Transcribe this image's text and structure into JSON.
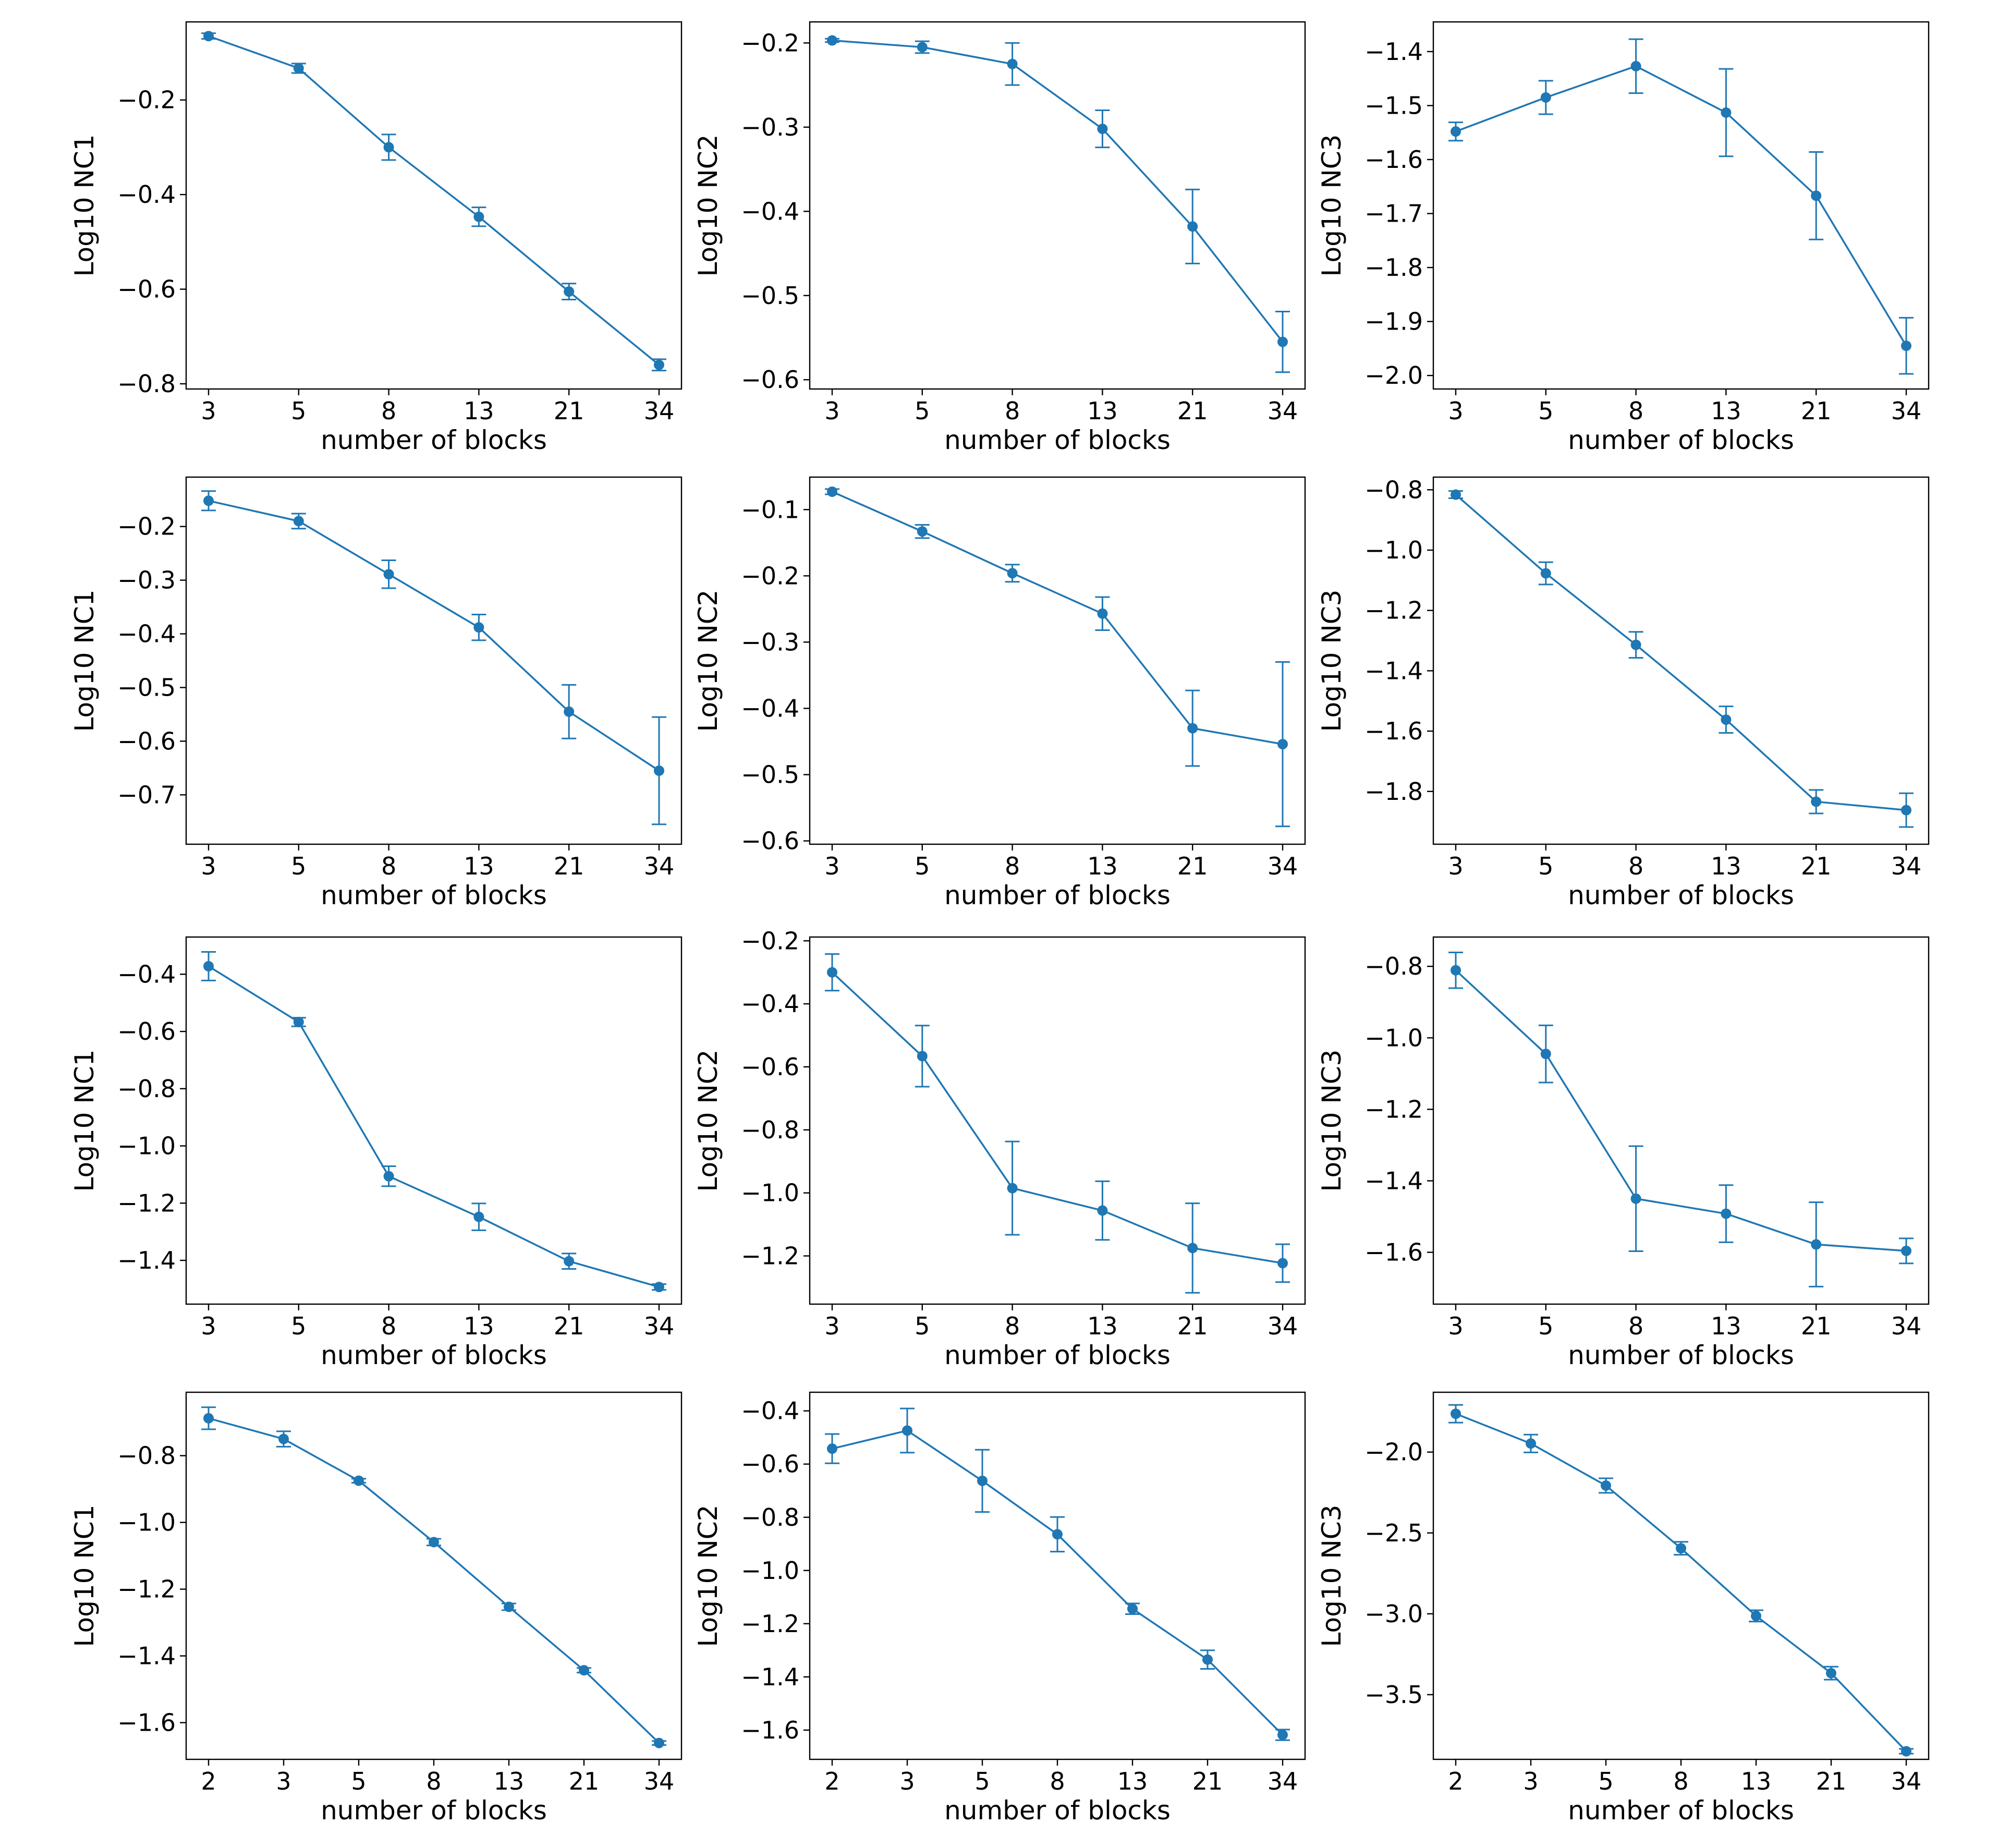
{
  "style": {
    "series_color": "#1f77b4",
    "frame_color": "#000000",
    "background": "#ffffff"
  },
  "chart_data": [
    {
      "type": "line",
      "xlabel": "number of blocks",
      "ylabel": "Log10 NC1",
      "categories": [
        "3",
        "5",
        "8",
        "13",
        "21",
        "34"
      ],
      "values": [
        -0.065,
        -0.133,
        -0.3,
        -0.447,
        -0.605,
        -0.76
      ],
      "errors": [
        0.006,
        0.01,
        0.027,
        0.02,
        0.017,
        0.012
      ],
      "yticks": [
        -0.8,
        -0.6,
        -0.4,
        -0.2
      ],
      "ytick_labels": [
        "−0.8",
        "−0.6",
        "−0.4",
        "−0.2"
      ],
      "ylim": [
        -0.811,
        -0.035
      ]
    },
    {
      "type": "line",
      "xlabel": "number of blocks",
      "ylabel": "Log10 NC2",
      "categories": [
        "3",
        "5",
        "8",
        "13",
        "21",
        "34"
      ],
      "values": [
        -0.197,
        -0.205,
        -0.225,
        -0.302,
        -0.418,
        -0.555
      ],
      "errors": [
        0.002,
        0.007,
        0.025,
        0.022,
        0.044,
        0.036
      ],
      "yticks": [
        -0.6,
        -0.5,
        -0.4,
        -0.3,
        -0.2
      ],
      "ytick_labels": [
        "−0.6",
        "−0.5",
        "−0.4",
        "−0.3",
        "−0.2"
      ],
      "ylim": [
        -0.611,
        -0.175
      ]
    },
    {
      "type": "line",
      "xlabel": "number of blocks",
      "ylabel": "Log10 NC3",
      "categories": [
        "3",
        "5",
        "8",
        "13",
        "21",
        "34"
      ],
      "values": [
        -1.548,
        -1.485,
        -1.427,
        -1.513,
        -1.667,
        -1.945
      ],
      "errors": [
        0.017,
        0.031,
        0.05,
        0.081,
        0.081,
        0.052
      ],
      "yticks": [
        -2.0,
        -1.9,
        -1.8,
        -1.7,
        -1.6,
        -1.5,
        -1.4
      ],
      "ytick_labels": [
        "−2.0",
        "−1.9",
        "−1.8",
        "−1.7",
        "−1.6",
        "−1.5",
        "−1.4"
      ],
      "ylim": [
        -2.025,
        -1.345
      ]
    },
    {
      "type": "line",
      "xlabel": "number of blocks",
      "ylabel": "Log10 NC1",
      "categories": [
        "3",
        "5",
        "8",
        "13",
        "21",
        "34"
      ],
      "values": [
        -0.152,
        -0.19,
        -0.289,
        -0.388,
        -0.545,
        -0.655
      ],
      "errors": [
        0.018,
        0.014,
        0.026,
        0.024,
        0.05,
        0.1
      ],
      "yticks": [
        -0.7,
        -0.6,
        -0.5,
        -0.4,
        -0.3,
        -0.2
      ],
      "ytick_labels": [
        "−0.7",
        "−0.6",
        "−0.5",
        "−0.4",
        "−0.3",
        "−0.2"
      ],
      "ylim": [
        -0.792,
        -0.108
      ]
    },
    {
      "type": "line",
      "xlabel": "number of blocks",
      "ylabel": "Log10 NC2",
      "categories": [
        "3",
        "5",
        "8",
        "13",
        "21",
        "34"
      ],
      "values": [
        -0.073,
        -0.133,
        -0.196,
        -0.257,
        -0.43,
        -0.454
      ],
      "errors": [
        0.004,
        0.01,
        0.013,
        0.025,
        0.057,
        0.124
      ],
      "yticks": [
        -0.6,
        -0.5,
        -0.4,
        -0.3,
        -0.2,
        -0.1
      ],
      "ytick_labels": [
        "−0.6",
        "−0.5",
        "−0.4",
        "−0.3",
        "−0.2",
        "−0.1"
      ],
      "ylim": [
        -0.605,
        -0.051
      ]
    },
    {
      "type": "line",
      "xlabel": "number of blocks",
      "ylabel": "Log10 NC3",
      "categories": [
        "3",
        "5",
        "8",
        "13",
        "21",
        "34"
      ],
      "values": [
        -0.816,
        -1.077,
        -1.314,
        -1.562,
        -1.834,
        -1.862
      ],
      "errors": [
        0.012,
        0.037,
        0.043,
        0.044,
        0.039,
        0.056
      ],
      "yticks": [
        -1.8,
        -1.6,
        -1.4,
        -1.2,
        -1.0,
        -0.8
      ],
      "ytick_labels": [
        "−1.8",
        "−1.6",
        "−1.4",
        "−1.2",
        "−1.0",
        "−0.8"
      ],
      "ylim": [
        -1.975,
        -0.758
      ]
    },
    {
      "type": "line",
      "xlabel": "number of blocks",
      "ylabel": "Log10 NC1",
      "categories": [
        "3",
        "5",
        "8",
        "13",
        "21",
        "34"
      ],
      "values": [
        -0.372,
        -0.567,
        -1.106,
        -1.248,
        -1.403,
        -1.493
      ],
      "errors": [
        0.05,
        0.015,
        0.035,
        0.047,
        0.027,
        0.01
      ],
      "yticks": [
        -1.4,
        -1.2,
        -1.0,
        -0.8,
        -0.6,
        -0.4
      ],
      "ytick_labels": [
        "−1.4",
        "−1.2",
        "−1.0",
        "−0.8",
        "−0.6",
        "−0.4"
      ],
      "ylim": [
        -1.553,
        -0.27
      ]
    },
    {
      "type": "line",
      "xlabel": "number of blocks",
      "ylabel": "Log10 NC2",
      "categories": [
        "3",
        "5",
        "8",
        "13",
        "21",
        "34"
      ],
      "values": [
        -0.3,
        -0.566,
        -0.985,
        -1.056,
        -1.175,
        -1.223
      ],
      "errors": [
        0.058,
        0.097,
        0.148,
        0.093,
        0.142,
        0.06
      ],
      "yticks": [
        -1.2,
        -1.0,
        -0.8,
        -0.6,
        -0.4,
        -0.2
      ],
      "ytick_labels": [
        "−1.2",
        "−1.0",
        "−0.8",
        "−0.6",
        "−0.4",
        "−0.2"
      ],
      "ylim": [
        -1.353,
        -0.188
      ]
    },
    {
      "type": "line",
      "xlabel": "number of blocks",
      "ylabel": "Log10 NC3",
      "categories": [
        "3",
        "5",
        "8",
        "13",
        "21",
        "34"
      ],
      "values": [
        -0.811,
        -1.045,
        -1.45,
        -1.492,
        -1.578,
        -1.596
      ],
      "errors": [
        0.05,
        0.08,
        0.147,
        0.08,
        0.118,
        0.035
      ],
      "yticks": [
        -1.6,
        -1.4,
        -1.2,
        -1.0,
        -0.8
      ],
      "ytick_labels": [
        "−1.6",
        "−1.4",
        "−1.2",
        "−1.0",
        "−0.8"
      ],
      "ylim": [
        -1.745,
        -0.718
      ]
    },
    {
      "type": "line",
      "xlabel": "number of blocks",
      "ylabel": "Log10 NC1",
      "categories": [
        "2",
        "3",
        "5",
        "8",
        "13",
        "21",
        "34"
      ],
      "values": [
        -0.688,
        -0.75,
        -0.875,
        -1.059,
        -1.253,
        -1.443,
        -1.661
      ],
      "errors": [
        0.033,
        0.023,
        0.006,
        0.01,
        0.01,
        0.007,
        0.006
      ],
      "yticks": [
        -1.6,
        -1.4,
        -1.2,
        -1.0,
        -0.8
      ],
      "ytick_labels": [
        "−1.6",
        "−1.4",
        "−1.2",
        "−1.0",
        "−0.8"
      ],
      "ylim": [
        -1.71,
        -0.61
      ]
    },
    {
      "type": "line",
      "xlabel": "number of blocks",
      "ylabel": "Log10 NC2",
      "categories": [
        "2",
        "3",
        "5",
        "8",
        "13",
        "21",
        "34"
      ],
      "values": [
        -0.542,
        -0.474,
        -0.663,
        -0.864,
        -1.144,
        -1.335,
        -1.618
      ],
      "errors": [
        0.055,
        0.083,
        0.117,
        0.065,
        0.02,
        0.035,
        0.02
      ],
      "yticks": [
        -1.6,
        -1.4,
        -1.2,
        -1.0,
        -0.8,
        -0.6,
        -0.4
      ],
      "ytick_labels": [
        "−1.6",
        "−1.4",
        "−1.2",
        "−1.0",
        "−0.8",
        "−0.6",
        "−0.4"
      ],
      "ylim": [
        -1.71,
        -0.33
      ]
    },
    {
      "type": "line",
      "xlabel": "number of blocks",
      "ylabel": "Log10 NC3",
      "categories": [
        "2",
        "3",
        "5",
        "8",
        "13",
        "21",
        "34"
      ],
      "values": [
        -1.763,
        -1.947,
        -2.207,
        -2.595,
        -3.013,
        -3.367,
        -3.85
      ],
      "errors": [
        0.055,
        0.055,
        0.045,
        0.04,
        0.035,
        0.04,
        0.015
      ],
      "yticks": [
        -3.5,
        -3.0,
        -2.5,
        -2.0
      ],
      "ytick_labels": [
        "−3.5",
        "−3.0",
        "−2.5",
        "−2.0"
      ],
      "ylim": [
        -3.9,
        -1.63
      ]
    }
  ]
}
